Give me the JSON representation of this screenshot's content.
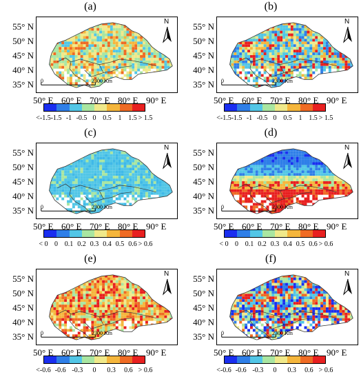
{
  "panels": [
    {
      "label": "(a)",
      "legend_colors": [
        "#1a2ef0",
        "#2f7fe8",
        "#52c6e6",
        "#a9e6a1",
        "#f0e98a",
        "#f5b63c",
        "#ef6b24",
        "#e82020"
      ],
      "ticks": [
        "<-1.5",
        "-1.5",
        "-1",
        "-0.5",
        "0",
        "0.5",
        "1",
        "1.5",
        "> 1.5"
      ],
      "fill": "warm-mixed"
    },
    {
      "label": "(b)",
      "legend_colors": [
        "#1a2ef0",
        "#2f7fe8",
        "#52c6e6",
        "#a9e6a1",
        "#f0e98a",
        "#f5b63c",
        "#ef6b24",
        "#e82020"
      ],
      "ticks": [
        "<-1.5",
        "-1.5",
        "-1",
        "-0.5",
        "0",
        "0.5",
        "1",
        "1.5",
        "> 1.5"
      ],
      "fill": "cool-mixed"
    },
    {
      "label": "(c)",
      "legend_colors": [
        "#1a2ef0",
        "#2f7fe8",
        "#52c6e6",
        "#a9e6a1",
        "#f0e98a",
        "#f5b63c",
        "#ef6b24",
        "#e82020"
      ],
      "ticks": [
        "< 0",
        "0",
        "0.1",
        "0.2",
        "0.3",
        "0.4",
        "0.5",
        "0.6",
        "> 0.6"
      ],
      "fill": "cyan"
    },
    {
      "label": "(d)",
      "legend_colors": [
        "#1a2ef0",
        "#2f7fe8",
        "#52c6e6",
        "#a9e6a1",
        "#f0e98a",
        "#f5b63c",
        "#ef6b24",
        "#e82020"
      ],
      "ticks": [
        "< 0",
        "0",
        "0.1",
        "0.2",
        "0.3",
        "0.4",
        "0.5",
        "0.6",
        "> 0.6"
      ],
      "fill": "gradient"
    },
    {
      "label": "(e)",
      "legend_colors": [
        "#1a2ef0",
        "#2f7fe8",
        "#52c6e6",
        "#a9e6a1",
        "#f0e98a",
        "#f5b63c",
        "#ef6b24",
        "#e82020"
      ],
      "ticks": [
        "<-0.6",
        "-0.6",
        "-0.3",
        "0",
        "0.3",
        "0.6",
        "> 0.6"
      ],
      "fill": "warm-orange"
    },
    {
      "label": "(f)",
      "legend_colors": [
        "#1a2ef0",
        "#2f7fe8",
        "#52c6e6",
        "#a9e6a1",
        "#f0e98a",
        "#f5b63c",
        "#ef6b24",
        "#e82020"
      ],
      "ticks": [
        "<-0.6",
        "-0.6",
        "-0.3",
        "0",
        "0.3",
        "0.6",
        "> 0.6"
      ],
      "fill": "blue-mixed"
    }
  ],
  "lat_labels": [
    "55° N",
    "50° N",
    "45° N",
    "40° N",
    "35° N"
  ],
  "lon_labels": [
    "50° E",
    "60° E",
    "70° E",
    "80° E",
    "90° E"
  ],
  "scale_zero": "0",
  "scale_text": "2300 Km",
  "north_label": "N"
}
